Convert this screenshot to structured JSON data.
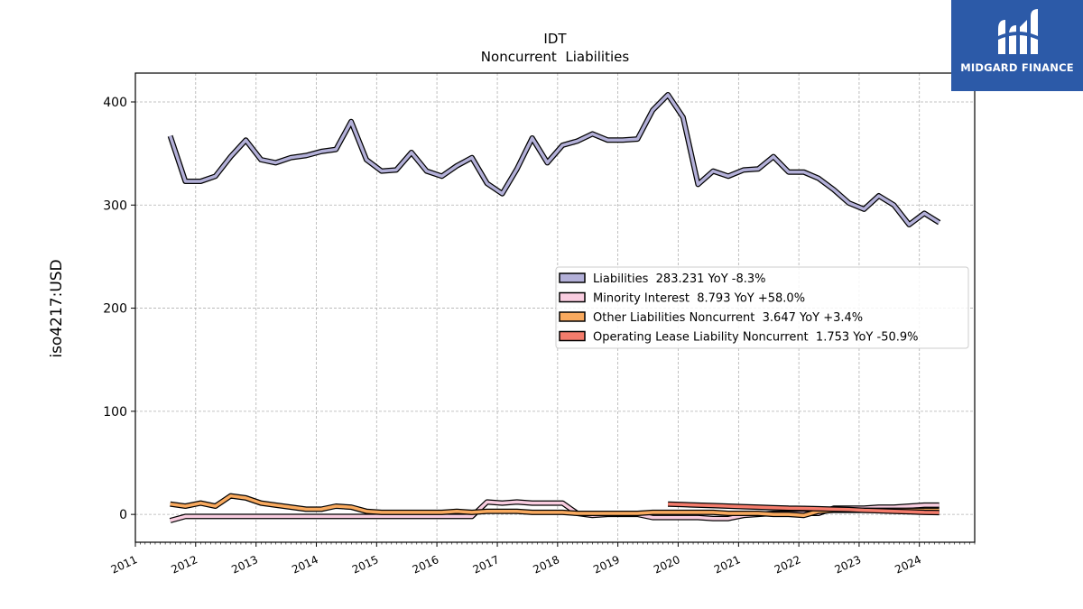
{
  "logo": {
    "text": "MIDGARD FINANCE",
    "bg_color": "#2c5aa8"
  },
  "chart_data": {
    "type": "line",
    "title": "IDT",
    "subtitle": "Noncurrent  Liabilities",
    "ylabel": "iso4217:USD",
    "xlabel": "",
    "xlim": [
      "2011-01-01",
      "2024-12-01"
    ],
    "ylim": [
      -27,
      428
    ],
    "yticks": [
      0,
      100,
      200,
      300,
      400
    ],
    "xticks": [
      "2011",
      "2012",
      "2013",
      "2014",
      "2015",
      "2016",
      "2017",
      "2018",
      "2019",
      "2020",
      "2021",
      "2022",
      "2023",
      "2024"
    ],
    "grid": true,
    "legend_position": "center-right",
    "series": [
      {
        "name": "Liabilities",
        "legend_label": "Liabilities  283.231 YoY -8.3%",
        "color": "#b3b0d8",
        "x": [
          "2011-07-31",
          "2011-10-31",
          "2012-01-31",
          "2012-04-30",
          "2012-07-31",
          "2012-10-31",
          "2013-01-31",
          "2013-04-30",
          "2013-07-31",
          "2013-10-31",
          "2014-01-31",
          "2014-04-30",
          "2014-07-31",
          "2014-10-31",
          "2015-01-31",
          "2015-04-30",
          "2015-07-31",
          "2015-10-31",
          "2016-01-31",
          "2016-04-30",
          "2016-07-31",
          "2016-10-31",
          "2017-01-31",
          "2017-04-30",
          "2017-07-31",
          "2017-10-31",
          "2018-01-31",
          "2018-04-30",
          "2018-07-31",
          "2018-10-31",
          "2019-01-31",
          "2019-04-30",
          "2019-07-31",
          "2019-10-31",
          "2020-01-31",
          "2020-04-30",
          "2020-07-31",
          "2020-10-31",
          "2021-01-31",
          "2021-04-30",
          "2021-07-31",
          "2021-10-31",
          "2022-01-31",
          "2022-04-30",
          "2022-07-31",
          "2022-10-31",
          "2023-01-31",
          "2023-04-30",
          "2023-07-31",
          "2023-10-31",
          "2024-01-31",
          "2024-04-30"
        ],
        "values": [
          367,
          323,
          323,
          328,
          347,
          363,
          344,
          341,
          346,
          348,
          352,
          354,
          381,
          344,
          333,
          334,
          351,
          333,
          328,
          338,
          346,
          321,
          311,
          335,
          365,
          341,
          358,
          362,
          369,
          363,
          363,
          364,
          392,
          407,
          385,
          320,
          333,
          328,
          334,
          335,
          347,
          332,
          332,
          326,
          315,
          302,
          296,
          309,
          300,
          281,
          292,
          283
        ]
      },
      {
        "name": "Minority Interest",
        "legend_label": "Minority Interest  8.793 YoY +58.0%",
        "color": "#f9cde0",
        "x": [
          "2011-07-31",
          "2011-10-31",
          "2012-01-31",
          "2012-04-30",
          "2012-07-31",
          "2012-10-31",
          "2013-01-31",
          "2013-04-30",
          "2013-07-31",
          "2013-10-31",
          "2014-01-31",
          "2014-04-30",
          "2014-07-31",
          "2014-10-31",
          "2015-01-31",
          "2015-04-30",
          "2015-07-31",
          "2015-10-31",
          "2016-01-31",
          "2016-04-30",
          "2016-07-31",
          "2016-10-31",
          "2017-01-31",
          "2017-04-30",
          "2017-07-31",
          "2017-10-31",
          "2018-01-31",
          "2018-04-30",
          "2018-07-31",
          "2018-10-31",
          "2019-01-31",
          "2019-04-30",
          "2019-07-31",
          "2019-10-31",
          "2020-01-31",
          "2020-04-30",
          "2020-07-31",
          "2020-10-31",
          "2021-01-31",
          "2021-04-30",
          "2021-07-31",
          "2021-10-31",
          "2022-01-31",
          "2022-04-30",
          "2022-07-31",
          "2022-10-31",
          "2023-01-31",
          "2023-04-30",
          "2023-07-31",
          "2023-10-31",
          "2024-01-31",
          "2024-04-30"
        ],
        "values": [
          -6,
          -2,
          -2,
          -2,
          -2,
          -2,
          -2,
          -2,
          -2,
          -2,
          -2,
          -2,
          -2,
          -2,
          -2,
          -2,
          -2,
          -2,
          -2,
          -2,
          -2,
          12,
          11,
          12,
          11,
          11,
          11,
          1,
          -1,
          0,
          0,
          0,
          -3,
          -3,
          -3,
          -3,
          -4,
          -4,
          -1,
          0,
          1,
          1,
          1,
          1,
          6,
          6,
          6,
          7,
          7,
          8,
          9,
          9
        ]
      },
      {
        "name": "Other Liabilities Noncurrent",
        "legend_label": "Other Liabilities Noncurrent  3.647 YoY +3.4%",
        "color": "#f9aa5f",
        "x": [
          "2011-07-31",
          "2011-10-31",
          "2012-01-31",
          "2012-04-30",
          "2012-07-31",
          "2012-10-31",
          "2013-01-31",
          "2013-04-30",
          "2013-07-31",
          "2013-10-31",
          "2014-01-31",
          "2014-04-30",
          "2014-07-31",
          "2014-10-31",
          "2015-01-31",
          "2015-04-30",
          "2015-07-31",
          "2015-10-31",
          "2016-01-31",
          "2016-04-30",
          "2016-07-31",
          "2016-10-31",
          "2017-01-31",
          "2017-04-30",
          "2017-07-31",
          "2017-10-31",
          "2018-01-31",
          "2018-04-30",
          "2018-07-31",
          "2018-10-31",
          "2019-01-31",
          "2019-04-30",
          "2019-07-31",
          "2019-10-31",
          "2020-01-31",
          "2020-04-30",
          "2020-07-31",
          "2020-10-31",
          "2021-01-31",
          "2021-04-30",
          "2021-07-31",
          "2021-10-31",
          "2022-01-31",
          "2022-04-30",
          "2022-07-31",
          "2022-10-31",
          "2023-01-31",
          "2023-04-30",
          "2023-07-31",
          "2023-10-31",
          "2024-01-31",
          "2024-04-30"
        ],
        "values": [
          10,
          8,
          11,
          8,
          18,
          16,
          11,
          9,
          7,
          5,
          5,
          8,
          7,
          3,
          2,
          2,
          2,
          2,
          2,
          3,
          2,
          3,
          3,
          3,
          2,
          2,
          2,
          1,
          1,
          1,
          1,
          1,
          2,
          2,
          2,
          2,
          2,
          1,
          1,
          1,
          0,
          0,
          -1,
          3,
          4,
          4,
          4,
          4,
          4,
          4,
          4,
          4
        ]
      },
      {
        "name": "Operating Lease Liability Noncurrent",
        "legend_label": "Operating Lease Liability Noncurrent  1.753 YoY -50.9%",
        "color": "#f47c6c",
        "x": [
          "2019-10-31",
          "2020-01-31",
          "2020-04-30",
          "2020-07-31",
          "2020-10-31",
          "2021-01-31",
          "2021-04-30",
          "2021-07-31",
          "2021-10-31",
          "2022-01-31",
          "2022-04-30",
          "2022-07-31",
          "2022-10-31",
          "2023-01-31",
          "2023-04-30",
          "2023-07-31",
          "2023-10-31",
          "2024-01-31",
          "2024-04-30"
        ],
        "values": [
          10,
          9.5,
          9,
          8.5,
          8,
          7.5,
          7,
          6.5,
          6,
          5.8,
          5.5,
          5,
          4.8,
          4,
          3.5,
          3,
          2.5,
          2,
          1.8
        ]
      }
    ]
  }
}
